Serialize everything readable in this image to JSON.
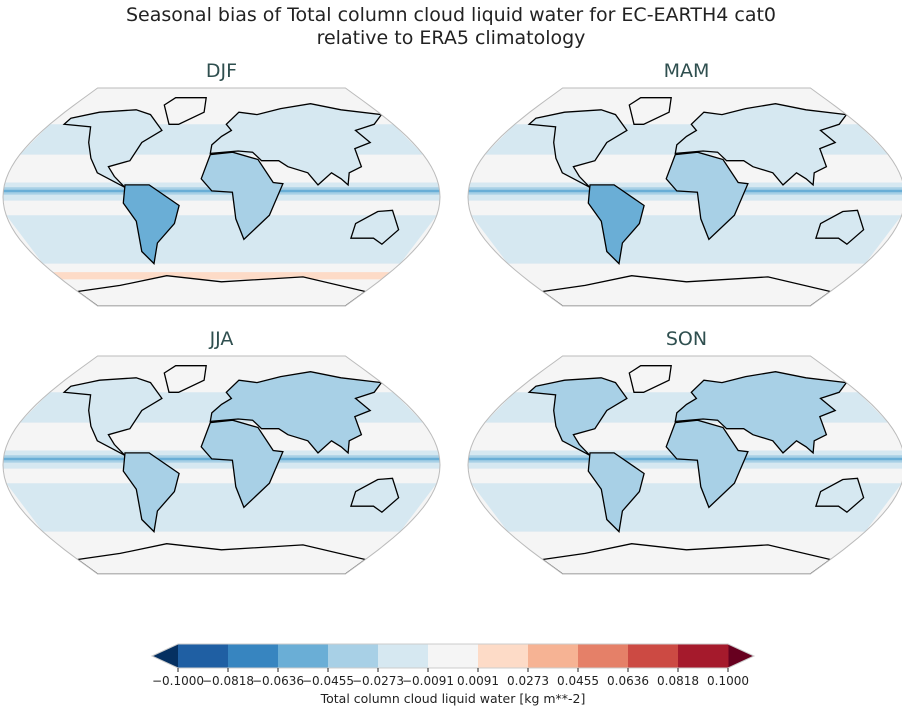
{
  "chart_data": {
    "type": "heatmap",
    "title": "Seasonal bias of Total column cloud liquid water for EC-EARTH4 cat0",
    "subtitle": "relative to ERA5 climatology",
    "panels": [
      {
        "title": "DJF"
      },
      {
        "title": "MAM"
      },
      {
        "title": "JJA"
      },
      {
        "title": "SON"
      }
    ],
    "projection": "Robinson",
    "colorbar": {
      "label": "Total column cloud liquid water [kg m**-2]",
      "ticks": [
        "−0.1000",
        "−0.0818",
        "−0.0636",
        "−0.0455",
        "−0.0273",
        "−0.0091",
        "0.0091",
        "0.0273",
        "0.0455",
        "0.0636",
        "0.0818",
        "0.1000"
      ],
      "levels": [
        -0.1,
        -0.0818,
        -0.0636,
        -0.0455,
        -0.0273,
        -0.0091,
        0.0091,
        0.0273,
        0.0455,
        0.0636,
        0.0818,
        0.1
      ],
      "colors": [
        "#1f5fa3",
        "#3785c0",
        "#6aaed6",
        "#a8d0e6",
        "#d6e8f1",
        "#f5f5f5",
        "#fddbc7",
        "#f6b394",
        "#e58068",
        "#cc4a43",
        "#a51a2c"
      ],
      "extend_low_color": "#053061",
      "extend_high_color": "#67001f",
      "extend": "both"
    }
  }
}
